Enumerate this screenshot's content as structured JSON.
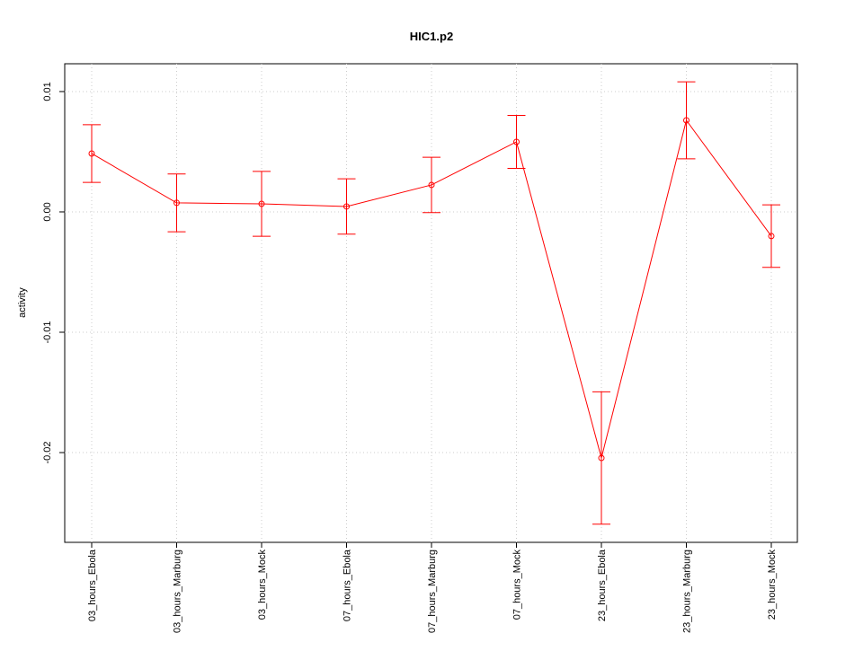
{
  "chart_data": {
    "type": "line",
    "title": "HIC1.p2",
    "y_label": "activity",
    "categories": [
      "03_hours_Ebola",
      "03_hours_Marburg",
      "03_hours_Mock",
      "07_hours_Ebola",
      "07_hours_Marburg",
      "07_hours_Mock",
      "23_hours_Ebola",
      "23_hours_Marburg",
      "23_hours_Mock"
    ],
    "values": [
      0.00485,
      0.00075,
      0.00067,
      0.00045,
      0.00224,
      0.00582,
      -0.02045,
      0.00761,
      -0.00201
    ],
    "errors": [
      0.0024,
      0.0024,
      0.0027,
      0.0023,
      0.0023,
      0.0022,
      0.0055,
      0.0032,
      0.0026
    ],
    "color": "#ff0000",
    "ylim": [
      -0.02746,
      0.01231
    ],
    "yticks": [
      -0.02,
      -0.01,
      {
        "value": 0,
        "label": "0.00"
      },
      0.01
    ],
    "grid": true
  }
}
